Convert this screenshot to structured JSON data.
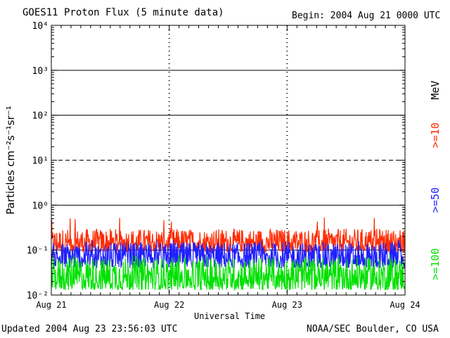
{
  "header": {
    "title": "GOES11 Proton Flux (5 minute data)",
    "begin": "Begin: 2004 Aug 21 0000 UTC"
  },
  "footer": {
    "updated": "Updated 2004 Aug 23 23:56:03 UTC",
    "credit": "NOAA/SEC Boulder, CO USA"
  },
  "colors": {
    "ge10": "#ff2a00",
    "ge50": "#1f1fff",
    "ge100": "#00e000",
    "axis": "#000000"
  },
  "chart_data": {
    "type": "line",
    "title": "GOES11 Proton Flux (5 minute data)",
    "xlabel": "Universal Time",
    "ylabel": "Particles cm⁻²s⁻¹sr⁻¹",
    "yscale": "log",
    "ylim": [
      0.01,
      10000
    ],
    "y_ticks": [
      "10⁻²",
      "10⁻¹",
      "10⁰",
      "10¹",
      "10²",
      "10³",
      "10⁴"
    ],
    "x_ticks": [
      "Aug 21",
      "Aug 22",
      "Aug 23",
      "Aug 24"
    ],
    "x_range_days": [
      0,
      3
    ],
    "right_labels": {
      "unit": "MeV",
      "ge10": ">=10",
      "ge50": ">=50",
      "ge100": ">=100"
    },
    "series": [
      {
        "name": ">=10",
        "color": "#ff2a00",
        "typical_min": 0.09,
        "typical_max": 0.3,
        "peak": 0.6
      },
      {
        "name": ">=50",
        "color": "#1f1fff",
        "typical_min": 0.04,
        "typical_max": 0.15,
        "peak": 0.17
      },
      {
        "name": ">=100",
        "color": "#00e000",
        "typical_min": 0.013,
        "typical_max": 0.07,
        "peak": 0.08
      }
    ]
  }
}
